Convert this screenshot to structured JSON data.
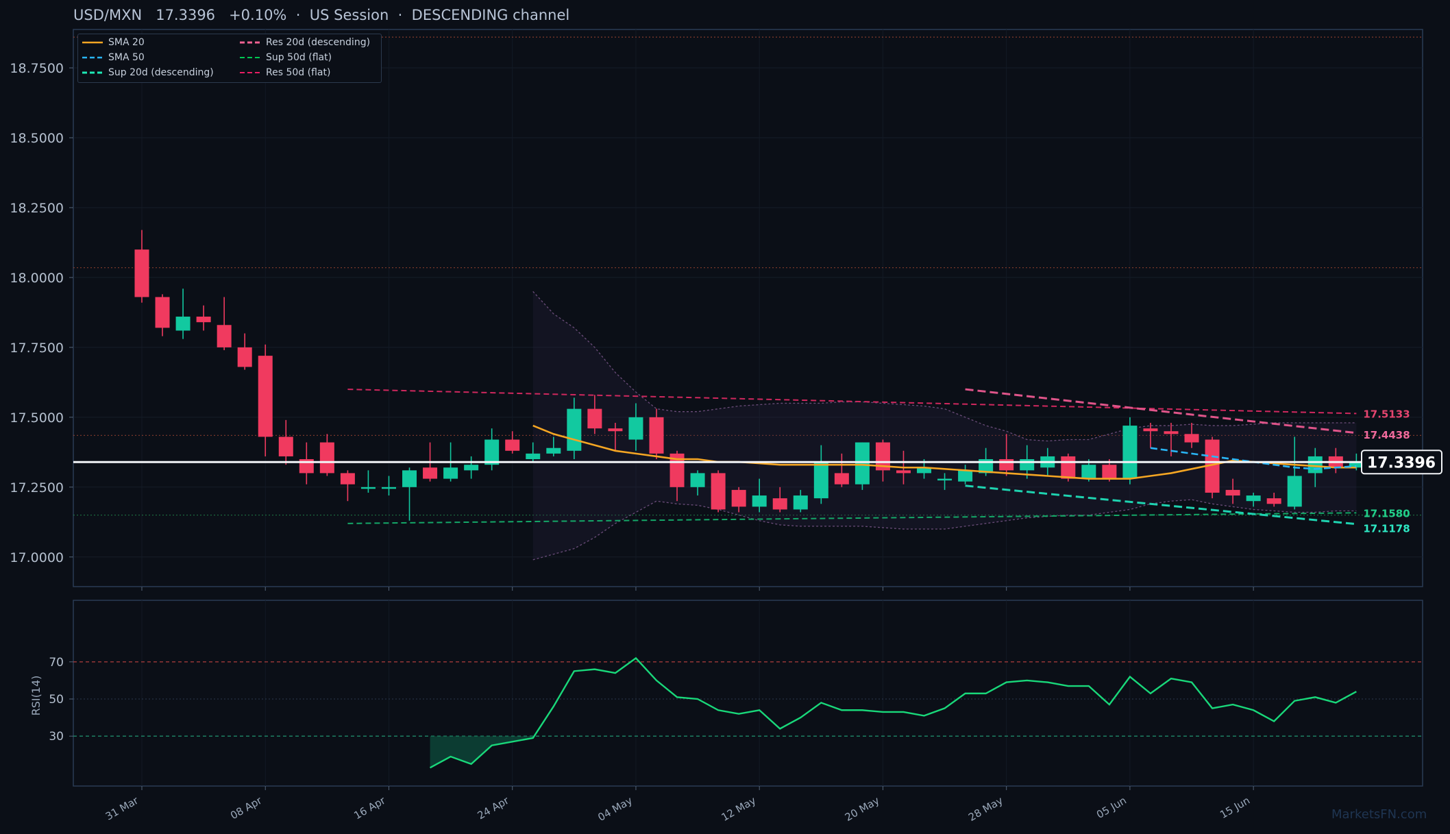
{
  "header": {
    "symbol": "USD/MXN",
    "price": "17.3396",
    "change": "+0.10%",
    "session": "US Session",
    "channel": "DESCENDING channel"
  },
  "legend": {
    "items": [
      {
        "label": "SMA 20",
        "color": "#f5a623",
        "style": "solid"
      },
      {
        "label": "SMA 50",
        "color": "#29b6f6",
        "style": "dashed"
      },
      {
        "label": "Sup 20d (descending)",
        "color": "#1de9b6",
        "style": "dashed"
      },
      {
        "label": "Res 20d (descending)",
        "color": "#f06292",
        "style": "dashed"
      },
      {
        "label": "Sup 50d (flat)",
        "color": "#00c853",
        "style": "dashed"
      },
      {
        "label": "Res 50d (flat)",
        "color": "#e91e63",
        "style": "dashed"
      }
    ]
  },
  "price_tag": "17.3396",
  "watermark": "MarketsFN.com",
  "colors": {
    "up": "#12c9a0",
    "down": "#f03a5f",
    "background": "#0b0f17",
    "rsi": "#19d87a"
  },
  "chart_data": [
    {
      "type": "candlestick",
      "title": "USD/MXN   17.3396   +0.10%  ·  US Session  ·  DESCENDING channel",
      "ylim": [
        16.9,
        19.0
      ],
      "y_ticks": [
        "17.0000",
        "17.2500",
        "17.5000",
        "17.7500",
        "18.0000",
        "18.2500",
        "18.5000",
        "18.7500"
      ],
      "x_tick_labels": [
        {
          "label": "31 Mar",
          "index": 0
        },
        {
          "label": "08 Apr",
          "index": 6
        },
        {
          "label": "16 Apr",
          "index": 12
        },
        {
          "label": "24 Apr",
          "index": 18
        },
        {
          "label": "04 May",
          "index": 24
        },
        {
          "label": "12 May",
          "index": 30
        },
        {
          "label": "20 May",
          "index": 36
        },
        {
          "label": "28 May",
          "index": 42
        },
        {
          "label": "05 Jun",
          "index": 48
        },
        {
          "label": "15 Jun",
          "index": 54
        }
      ],
      "ohlc": [
        [
          18.1,
          18.17,
          17.91,
          17.93
        ],
        [
          17.93,
          17.94,
          17.79,
          17.82
        ],
        [
          17.81,
          17.96,
          17.78,
          17.86
        ],
        [
          17.86,
          17.9,
          17.81,
          17.84
        ],
        [
          17.83,
          17.93,
          17.74,
          17.75
        ],
        [
          17.75,
          17.8,
          17.67,
          17.68
        ],
        [
          17.72,
          17.76,
          17.36,
          17.43
        ],
        [
          17.43,
          17.49,
          17.33,
          17.36
        ],
        [
          17.35,
          17.41,
          17.26,
          17.3
        ],
        [
          17.41,
          17.44,
          17.29,
          17.3
        ],
        [
          17.3,
          17.31,
          17.2,
          17.26
        ],
        [
          17.25,
          17.31,
          17.23,
          17.25
        ],
        [
          17.25,
          17.29,
          17.22,
          17.25
        ],
        [
          17.25,
          17.32,
          17.13,
          17.31
        ],
        [
          17.32,
          17.41,
          17.27,
          17.28
        ],
        [
          17.28,
          17.41,
          17.27,
          17.32
        ],
        [
          17.31,
          17.36,
          17.28,
          17.33
        ],
        [
          17.33,
          17.46,
          17.31,
          17.42
        ],
        [
          17.42,
          17.45,
          17.37,
          17.38
        ],
        [
          17.35,
          17.41,
          17.34,
          17.37
        ],
        [
          17.37,
          17.43,
          17.36,
          17.39
        ],
        [
          17.38,
          17.57,
          17.35,
          17.53
        ],
        [
          17.53,
          17.58,
          17.44,
          17.46
        ],
        [
          17.46,
          17.48,
          17.38,
          17.45
        ],
        [
          17.42,
          17.55,
          17.38,
          17.5
        ],
        [
          17.5,
          17.53,
          17.35,
          17.37
        ],
        [
          17.37,
          17.38,
          17.2,
          17.25
        ],
        [
          17.25,
          17.31,
          17.22,
          17.3
        ],
        [
          17.3,
          17.31,
          17.16,
          17.17
        ],
        [
          17.24,
          17.25,
          17.16,
          17.18
        ],
        [
          17.18,
          17.28,
          17.16,
          17.22
        ],
        [
          17.21,
          17.25,
          17.16,
          17.17
        ],
        [
          17.17,
          17.24,
          17.16,
          17.22
        ],
        [
          17.21,
          17.4,
          17.19,
          17.34
        ],
        [
          17.3,
          17.37,
          17.25,
          17.26
        ],
        [
          17.26,
          17.41,
          17.24,
          17.41
        ],
        [
          17.41,
          17.42,
          17.27,
          17.31
        ],
        [
          17.31,
          17.38,
          17.26,
          17.3
        ],
        [
          17.3,
          17.35,
          17.28,
          17.32
        ],
        [
          17.28,
          17.3,
          17.24,
          17.28
        ],
        [
          17.27,
          17.33,
          17.26,
          17.31
        ],
        [
          17.3,
          17.39,
          17.29,
          17.35
        ],
        [
          17.35,
          17.44,
          17.29,
          17.31
        ],
        [
          17.31,
          17.4,
          17.28,
          17.35
        ],
        [
          17.32,
          17.39,
          17.29,
          17.36
        ],
        [
          17.36,
          17.37,
          17.27,
          17.28
        ],
        [
          17.28,
          17.35,
          17.27,
          17.33
        ],
        [
          17.33,
          17.35,
          17.27,
          17.28
        ],
        [
          17.28,
          17.5,
          17.26,
          17.47
        ],
        [
          17.46,
          17.48,
          17.39,
          17.45
        ],
        [
          17.45,
          17.48,
          17.36,
          17.44
        ],
        [
          17.44,
          17.48,
          17.39,
          17.41
        ],
        [
          17.42,
          17.43,
          17.21,
          17.23
        ],
        [
          17.24,
          17.28,
          17.19,
          17.22
        ],
        [
          17.2,
          17.23,
          17.18,
          17.22
        ],
        [
          17.21,
          17.23,
          17.18,
          17.19
        ],
        [
          17.18,
          17.43,
          17.17,
          17.29
        ],
        [
          17.3,
          17.39,
          17.25,
          17.36
        ],
        [
          17.36,
          17.39,
          17.3,
          17.32
        ],
        [
          17.32,
          17.37,
          17.31,
          17.34
        ]
      ],
      "sma20": {
        "name": "SMA 20",
        "start_index": 19,
        "values": [
          17.47,
          17.44,
          17.42,
          17.4,
          17.38,
          17.37,
          17.36,
          17.35,
          17.35,
          17.34,
          17.34,
          17.335,
          17.33,
          17.33,
          17.33,
          17.33,
          17.33,
          17.325,
          17.32,
          17.32,
          17.315,
          17.31,
          17.305,
          17.3,
          17.295,
          17.29,
          17.285,
          17.28,
          17.28,
          17.28,
          17.29,
          17.3,
          17.315,
          17.33,
          17.345,
          17.34,
          17.335,
          17.33,
          17.325,
          17.32,
          17.32
        ]
      },
      "sma50": {
        "name": "SMA 50",
        "start_index": 49,
        "values": [
          17.39,
          17.38,
          17.37,
          17.36,
          17.35,
          17.34,
          17.33,
          17.32,
          17.315,
          17.32,
          17.325
        ]
      },
      "bollinger": {
        "start_index": 19,
        "upper": [
          17.95,
          17.87,
          17.82,
          17.75,
          17.66,
          17.59,
          17.53,
          17.52,
          17.52,
          17.53,
          17.54,
          17.545,
          17.55,
          17.55,
          17.55,
          17.555,
          17.555,
          17.55,
          17.545,
          17.54,
          17.53,
          17.5,
          17.47,
          17.45,
          17.42,
          17.415,
          17.42,
          17.42,
          17.44,
          17.46,
          17.47,
          17.47,
          17.475,
          17.47,
          17.47,
          17.475,
          17.48,
          17.48,
          17.48,
          17.48,
          17.48
        ],
        "lower": [
          16.99,
          17.01,
          17.03,
          17.07,
          17.12,
          17.16,
          17.2,
          17.19,
          17.185,
          17.17,
          17.15,
          17.13,
          17.115,
          17.11,
          17.11,
          17.11,
          17.11,
          17.105,
          17.1,
          17.1,
          17.1,
          17.11,
          17.12,
          17.13,
          17.14,
          17.145,
          17.15,
          17.15,
          17.16,
          17.17,
          17.19,
          17.2,
          17.205,
          17.19,
          17.18,
          17.17,
          17.165,
          17.16,
          17.16,
          17.165,
          17.165
        ]
      },
      "horizontal_levels": [
        18.86,
        18.035,
        17.435,
        17.15
      ],
      "current_price": 17.3396,
      "lines": [
        {
          "name": "Res 50d (flat)",
          "from": [
            10,
            17.6
          ],
          "to": [
            59,
            17.5133
          ],
          "end_label": "17.5133"
        },
        {
          "name": "Res 20d (descending)",
          "from": [
            40,
            17.6
          ],
          "to": [
            59,
            17.4438
          ],
          "end_label": "17.4438"
        },
        {
          "name": "Sup 50d (flat)",
          "from": [
            10,
            17.12
          ],
          "to": [
            59,
            17.158
          ],
          "end_label": "17.1580"
        },
        {
          "name": "Sup 20d (descending)",
          "from": [
            40,
            17.255
          ],
          "to": [
            59,
            17.1178
          ],
          "end_label": "17.1178"
        }
      ]
    },
    {
      "type": "line",
      "ylabel": "RSI(14)",
      "ylim": [
        0,
        100
      ],
      "y_ticks": [
        "30",
        "50",
        "70"
      ],
      "levels": {
        "overbought": 70,
        "oversold": 30
      },
      "start_index": 14,
      "values": [
        13,
        19,
        15,
        25,
        27,
        29,
        46,
        65,
        66,
        64,
        72,
        60,
        51,
        50,
        44,
        42,
        44,
        34,
        40,
        48,
        44,
        44,
        43,
        43,
        41,
        45,
        53,
        53,
        59,
        60,
        59,
        57,
        57,
        47,
        62,
        53,
        61,
        59,
        45,
        47,
        44,
        38,
        49,
        51,
        48,
        54
      ]
    }
  ]
}
